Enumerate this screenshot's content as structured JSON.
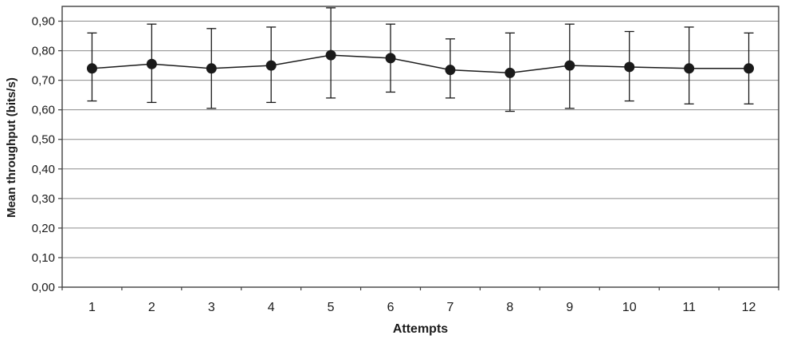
{
  "chart_data": {
    "type": "line",
    "title": "",
    "xlabel": "Attempts",
    "ylabel": "Mean throughput (bits/s)",
    "x": [
      1,
      2,
      3,
      4,
      5,
      6,
      7,
      8,
      9,
      10,
      11,
      12
    ],
    "xtick_labels": [
      "1",
      "2",
      "3",
      "4",
      "5",
      "6",
      "7",
      "8",
      "9",
      "10",
      "11",
      "12"
    ],
    "series": [
      {
        "name": "Mean throughput",
        "values": [
          0.74,
          0.755,
          0.74,
          0.75,
          0.785,
          0.775,
          0.735,
          0.725,
          0.75,
          0.745,
          0.74,
          0.74
        ],
        "error_upper": [
          0.86,
          0.89,
          0.875,
          0.88,
          0.945,
          0.89,
          0.84,
          0.86,
          0.89,
          0.865,
          0.88,
          0.86
        ],
        "error_lower": [
          0.63,
          0.625,
          0.605,
          0.625,
          0.64,
          0.66,
          0.64,
          0.595,
          0.605,
          0.63,
          0.62,
          0.62
        ]
      }
    ],
    "ylim": [
      0,
      0.95
    ],
    "yticks": [
      0,
      0.1,
      0.2,
      0.3,
      0.4,
      0.5,
      0.6,
      0.7,
      0.8,
      0.9
    ],
    "ytick_labels": [
      "0,00",
      "0,10",
      "0,20",
      "0,30",
      "0,40",
      "0,50",
      "0,60",
      "0,70",
      "0,80",
      "0,90"
    ],
    "grid": true,
    "legend": "none",
    "decimal_separator": ","
  },
  "colors": {
    "background": "#ffffff",
    "line": "#1a1a1a",
    "marker": "#1a1a1a",
    "error_bar": "#1a1a1a",
    "grid": "#8c8c8c",
    "axis": "#404040",
    "text": "#1a1a1a"
  }
}
